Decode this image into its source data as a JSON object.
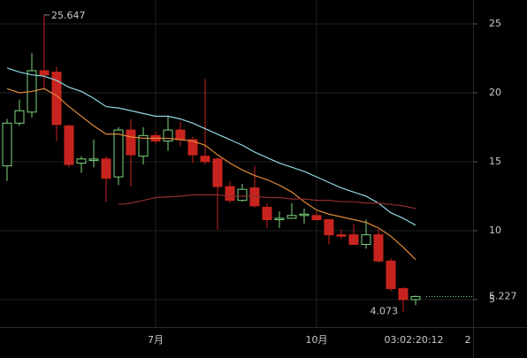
{
  "chart_data": {
    "type": "candlestick",
    "categories": [
      null,
      null,
      null,
      null,
      null,
      null,
      null,
      null,
      null,
      null,
      null,
      null,
      "7月",
      null,
      null,
      null,
      null,
      null,
      null,
      null,
      null,
      null,
      null,
      null,
      null,
      "10月",
      null,
      null,
      null,
      null,
      null,
      null,
      null,
      null
    ],
    "open": [
      14.7,
      17.8,
      18.6,
      21.6,
      21.5,
      17.6,
      14.9,
      15.1,
      15.2,
      13.9,
      17.3,
      15.4,
      16.9,
      16.5,
      17.3,
      16.6,
      15.4,
      15.2,
      13.2,
      12.2,
      13.1,
      11.7,
      10.8,
      10.9,
      11.1,
      11.1,
      10.8,
      9.7,
      9.7,
      9.0,
      9.7,
      7.8,
      5.8,
      5.0
    ],
    "high": [
      18.1,
      19.5,
      22.9,
      25.647,
      21.9,
      17.7,
      15.4,
      16.6,
      15.4,
      17.5,
      18.1,
      17.5,
      17.2,
      18.3,
      17.9,
      16.8,
      21.0,
      15.3,
      13.6,
      13.4,
      14.7,
      12.0,
      11.4,
      12.0,
      11.6,
      11.4,
      10.8,
      10.1,
      10.5,
      10.8,
      10.1,
      8.0,
      5.9,
      5.3
    ],
    "low": [
      13.6,
      17.6,
      18.2,
      20.3,
      16.5,
      14.6,
      14.2,
      14.6,
      12.1,
      13.3,
      13.2,
      14.8,
      16.3,
      15.8,
      16.1,
      14.9,
      14.8,
      10.06,
      12.0,
      12.1,
      11.7,
      10.2,
      10.2,
      10.9,
      10.5,
      10.7,
      9.0,
      9.4,
      9.0,
      8.7,
      7.7,
      5.6,
      4.073,
      4.6
    ],
    "close": [
      17.8,
      18.7,
      21.6,
      21.3,
      17.7,
      14.8,
      15.2,
      15.2,
      13.8,
      17.3,
      15.5,
      16.9,
      16.5,
      17.3,
      16.6,
      15.5,
      15.0,
      13.2,
      12.2,
      13.0,
      11.8,
      10.8,
      10.9,
      11.1,
      11.2,
      10.8,
      9.7,
      9.6,
      9.0,
      9.7,
      7.8,
      5.8,
      5.0,
      5.227
    ],
    "up_color": "#7fd67f",
    "down_color": "#c8241f",
    "series": [
      {
        "color": "#8fd6e4",
        "values": [
          21.8,
          21.5,
          21.3,
          21.2,
          20.9,
          20.4,
          20.1,
          19.6,
          19.0,
          18.9,
          18.7,
          18.5,
          18.3,
          18.3,
          18.1,
          17.8,
          17.4,
          17.0,
          16.6,
          16.2,
          15.7,
          15.3,
          14.9,
          14.6,
          14.3,
          13.9,
          13.5,
          13.1,
          12.8,
          12.5,
          12.0,
          11.3,
          10.9,
          10.4
        ]
      },
      {
        "color": "#e08a3a",
        "values": [
          20.3,
          20.0,
          20.1,
          20.3,
          19.8,
          19.0,
          18.3,
          17.6,
          17.0,
          17.0,
          16.8,
          16.7,
          16.7,
          16.7,
          16.6,
          16.5,
          16.2,
          15.5,
          14.9,
          14.4,
          14.0,
          13.7,
          13.3,
          12.8,
          12.1,
          11.5,
          11.2,
          11.0,
          10.8,
          10.6,
          10.2,
          9.6,
          8.8,
          7.9
        ]
      },
      {
        "color": "#8e2c2c",
        "values": [
          null,
          null,
          null,
          null,
          null,
          null,
          null,
          null,
          null,
          11.9,
          12.0,
          12.2,
          12.4,
          12.45,
          12.5,
          12.6,
          12.6,
          12.6,
          12.5,
          12.5,
          12.5,
          12.4,
          12.4,
          12.3,
          12.3,
          12.2,
          12.2,
          12.1,
          12.1,
          12.0,
          12.0,
          11.9,
          11.8,
          11.6
        ]
      }
    ],
    "ylim": [
      3.01,
      26.73
    ],
    "yticks": [
      5,
      10,
      15,
      20,
      25
    ],
    "grid": true,
    "max_label": "25.647",
    "min_label": "4.073",
    "last_label": "5.227",
    "crosshair_label": "03:02:20:12",
    "edge_label": "2"
  }
}
